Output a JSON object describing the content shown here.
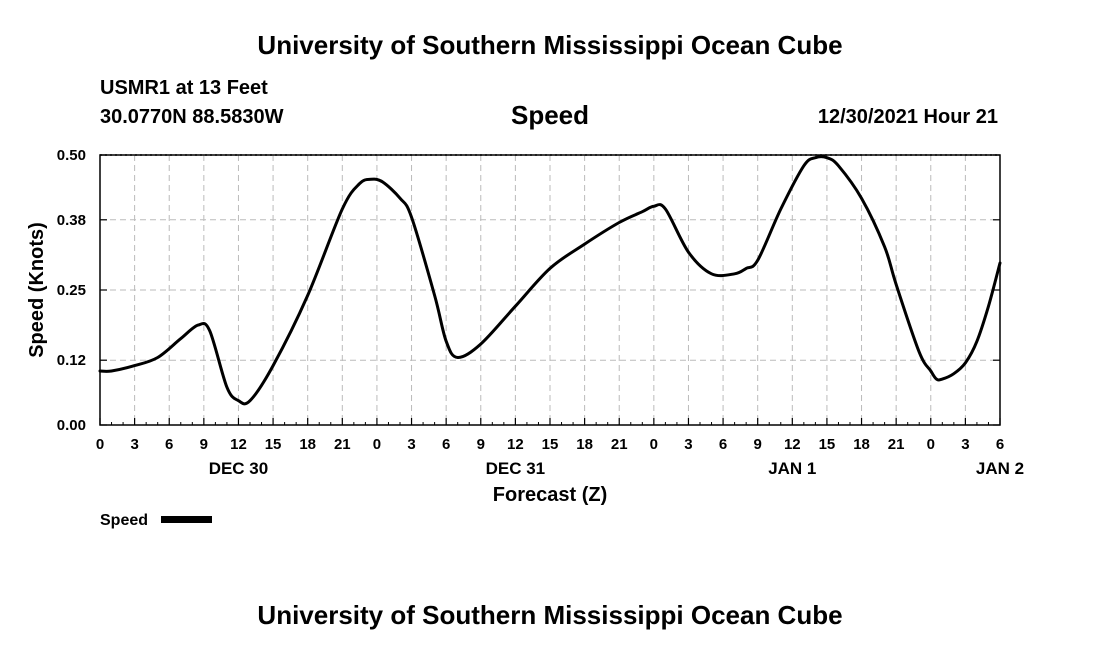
{
  "header": {
    "title": "University of Southern Mississippi Ocean Cube",
    "station": "USMR1 at 13 Feet",
    "coords": "30.0770N  88.5830W",
    "chart_title": "Speed",
    "timestamp": "12/30/2021 Hour 21"
  },
  "footer": {
    "title": "University of Southern Mississippi Ocean Cube"
  },
  "colors": {
    "line": "#000000",
    "grid": "#bbbbbb",
    "background": "#ffffff"
  },
  "chart_data": {
    "type": "line",
    "title": "Speed",
    "xlabel": "Forecast (Z)",
    "ylabel": "Speed (Knots)",
    "xlim": [
      0,
      78
    ],
    "ylim": [
      0,
      0.5
    ],
    "yticks": [
      0.0,
      0.12,
      0.25,
      0.38,
      0.5
    ],
    "ytick_labels": [
      "0.00",
      "0.12",
      "0.25",
      "0.38",
      "0.50"
    ],
    "xticks": [
      0,
      3,
      6,
      9,
      12,
      15,
      18,
      21,
      24,
      27,
      30,
      33,
      36,
      39,
      42,
      45,
      48,
      51,
      54,
      57,
      60,
      63,
      66,
      69,
      72,
      75,
      78
    ],
    "xtick_labels": [
      "0",
      "3",
      "6",
      "9",
      "12",
      "15",
      "18",
      "21",
      "0",
      "3",
      "6",
      "9",
      "12",
      "15",
      "18",
      "21",
      "0",
      "3",
      "6",
      "9",
      "12",
      "15",
      "18",
      "21",
      "0",
      "3",
      "6"
    ],
    "date_labels": [
      {
        "x": 12,
        "label": "DEC 30"
      },
      {
        "x": 36,
        "label": "DEC 31"
      },
      {
        "x": 60,
        "label": "JAN 1"
      },
      {
        "x": 78,
        "label": "JAN 2"
      }
    ],
    "grid": true,
    "legend": {
      "label": "Speed",
      "placement": "bottom-left"
    },
    "series": [
      {
        "name": "Speed",
        "x": [
          0,
          1,
          3,
          5,
          7,
          8.5,
          9.5,
          11,
          12,
          13,
          15,
          18,
          21,
          22.5,
          23.5,
          24.5,
          26,
          27,
          29,
          30,
          31,
          33,
          36,
          39,
          42,
          45,
          47,
          48,
          49,
          51,
          53,
          55,
          56,
          57,
          59,
          61,
          62,
          63,
          64,
          66,
          68,
          69,
          71,
          72,
          72.5,
          73,
          74,
          75,
          76,
          77,
          78
        ],
        "values": [
          0.1,
          0.1,
          0.11,
          0.125,
          0.16,
          0.185,
          0.175,
          0.07,
          0.045,
          0.045,
          0.11,
          0.24,
          0.4,
          0.447,
          0.455,
          0.45,
          0.42,
          0.385,
          0.24,
          0.155,
          0.125,
          0.15,
          0.22,
          0.29,
          0.335,
          0.375,
          0.395,
          0.405,
          0.4,
          0.32,
          0.28,
          0.28,
          0.29,
          0.305,
          0.4,
          0.48,
          0.495,
          0.495,
          0.48,
          0.42,
          0.33,
          0.26,
          0.135,
          0.1,
          0.085,
          0.085,
          0.095,
          0.115,
          0.155,
          0.22,
          0.3
        ]
      }
    ]
  }
}
